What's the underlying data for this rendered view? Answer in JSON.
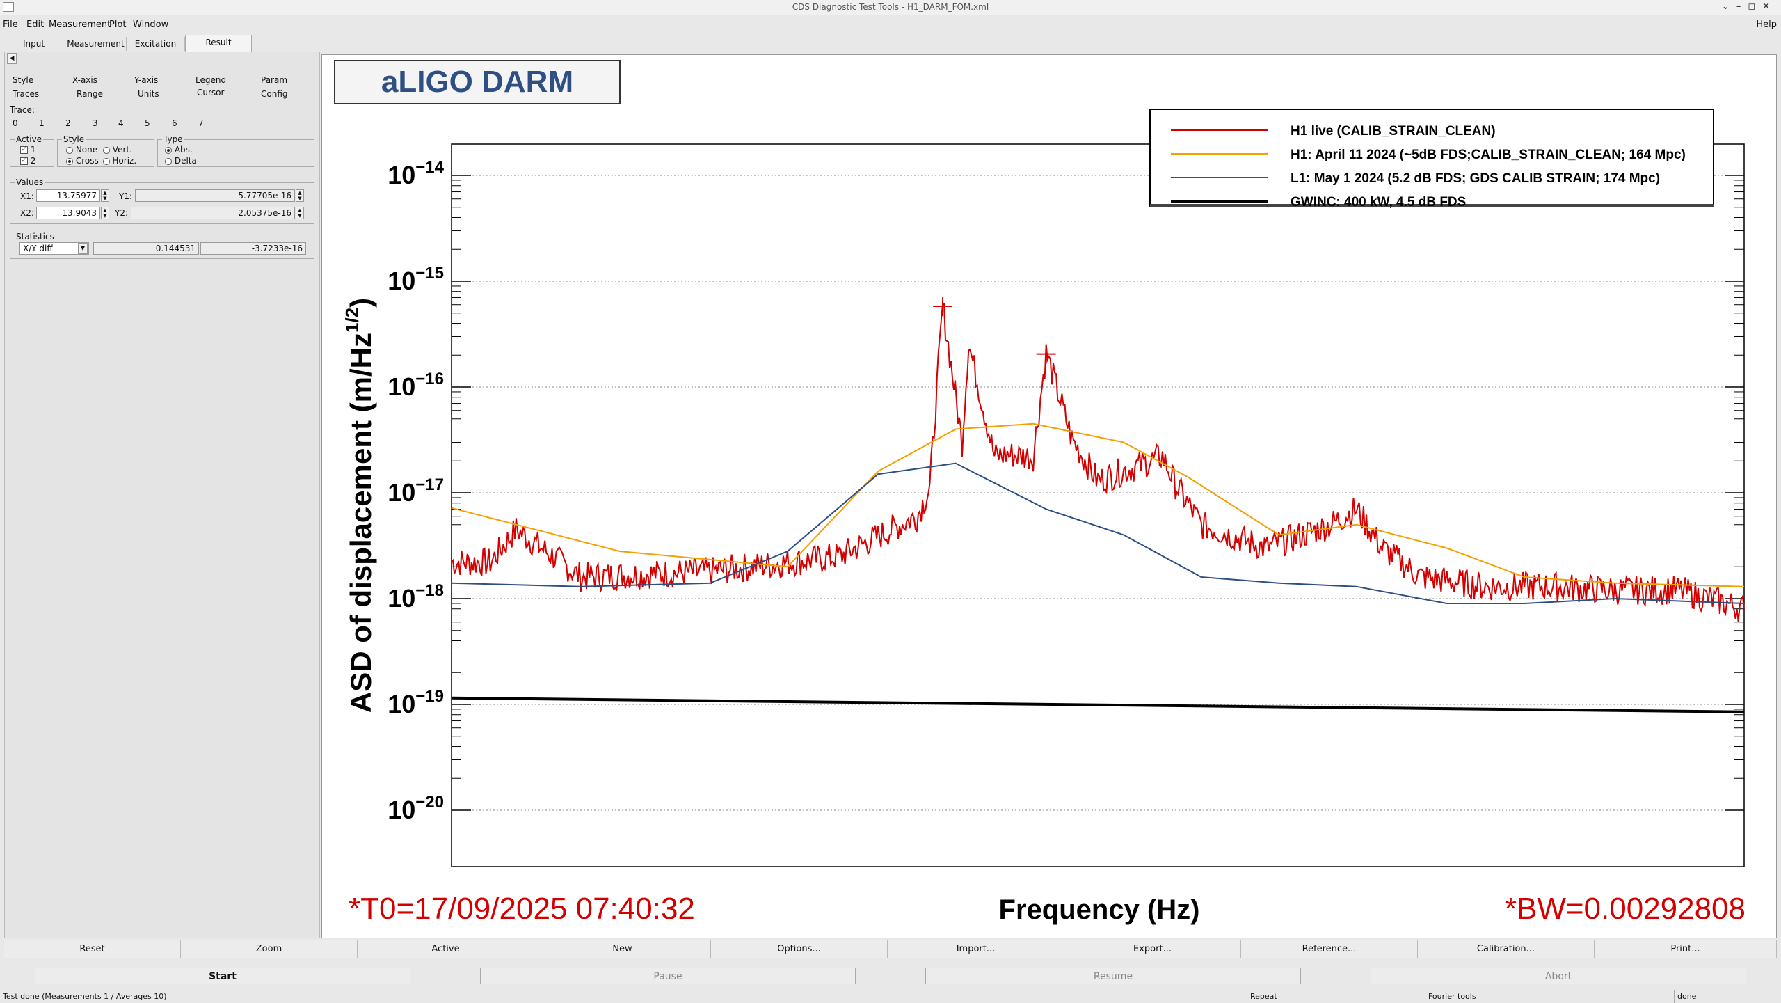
{
  "window": {
    "title": "CDS Diagnostic Test Tools - H1_DARM_FOM.xml"
  },
  "menu": [
    "File",
    "Edit",
    "Measurement",
    "Plot",
    "Window"
  ],
  "menu_help": "Help",
  "tabs": [
    "Input",
    "Measurement",
    "Excitation",
    "Result"
  ],
  "subtabs_row1": [
    "Style",
    "X-axis",
    "Y-axis",
    "Legend",
    "Param"
  ],
  "subtabs_row2": [
    "Traces",
    "Range",
    "Units",
    "Cursor",
    "Config"
  ],
  "trace_label": "Trace:",
  "trace_tabs": [
    "0",
    "1",
    "2",
    "3",
    "4",
    "5",
    "6",
    "7"
  ],
  "active_group": {
    "label": "Active",
    "items": [
      "1",
      "2"
    ],
    "check": "✓"
  },
  "style_group": {
    "label": "Style",
    "items": [
      "None",
      "Vert.",
      "Cross",
      "Horiz."
    ]
  },
  "type_group": {
    "label": "Type",
    "items": [
      "Abs.",
      "Delta"
    ]
  },
  "values_group": {
    "label": "Values",
    "x1_label": "X1:",
    "x1": "13.75977",
    "y1_label": "Y1:",
    "y1": "5.77705e-16",
    "x2_label": "X2:",
    "x2": "13.9043",
    "y2_label": "Y2:",
    "y2": "2.05375e-16"
  },
  "stats_group": {
    "label": "Statistics",
    "select": "X/Y diff",
    "v1": "0.144531",
    "v2": "-3.7233e-16"
  },
  "plot": {
    "title": "aLIGO DARM",
    "xlabel": "Frequency (Hz)",
    "ylabel": "ASD of displacement (m/Hz",
    "ylabel_sup": "1/2",
    "ylabel_end": ")",
    "t0": "*T0=17/09/2025 07:40:32",
    "bw": "*BW=0.00292808",
    "ytick_base": "10",
    "yticks_exp": [
      "−14",
      "−15",
      "−16",
      "−17",
      "−18",
      "−19",
      "−20"
    ]
  },
  "chart_data": {
    "type": "line",
    "yscale": "log",
    "xlabel": "Frequency (Hz)",
    "ylabel": "ASD of displacement (m/Hz^1/2)",
    "grid": true,
    "legend_position": "top-right",
    "series": [
      {
        "name": "H1 live (CALIB_STRAIN_CLEAN)",
        "color": "#d40000",
        "x": [
          0,
          0.03,
          0.05,
          0.1,
          0.2,
          0.3,
          0.36,
          0.37,
          0.38,
          0.395,
          0.4,
          0.42,
          0.43,
          0.45,
          0.46,
          0.48,
          0.5,
          0.52,
          0.55,
          0.56,
          0.58,
          0.63,
          0.68,
          0.7,
          0.72,
          0.75,
          0.8,
          0.85,
          0.9,
          0.95,
          1.0
        ],
        "y": [
          2.2e-18,
          2.2e-18,
          4.5e-18,
          1.6e-18,
          1.8e-18,
          2.5e-18,
          6e-18,
          1.1e-17,
          5.8e-16,
          3e-17,
          2.6e-16,
          2.2e-17,
          2.3e-17,
          2.2e-17,
          2.1e-16,
          3.2e-17,
          1.3e-17,
          1.6e-17,
          2.2e-17,
          1.2e-17,
          5e-18,
          3e-18,
          5e-18,
          7e-18,
          3e-18,
          1.6e-18,
          1.3e-18,
          1.3e-18,
          1.2e-18,
          1.2e-18,
          8e-19
        ]
      },
      {
        "name": "H1: April 11 2024 (~5dB FDS;CALIB_STRAIN_CLEAN; 164 Mpc)",
        "color": "#f5a000",
        "x": [
          0,
          0.13,
          0.26,
          0.33,
          0.39,
          0.45,
          0.52,
          0.57,
          0.64,
          0.7,
          0.77,
          0.83,
          0.9,
          1.0
        ],
        "y": [
          7.2e-18,
          2.8e-18,
          2e-18,
          1.6e-17,
          4e-17,
          4.5e-17,
          3e-17,
          1.4e-17,
          4e-18,
          5e-18,
          3e-18,
          1.6e-18,
          1.4e-18,
          1.3e-18
        ]
      },
      {
        "name": "L1: May 1 2024 (5.2 dB FDS; GDS CALIB STRAIN; 174 Mpc)",
        "color": "#2e4f84",
        "x": [
          0,
          0.1,
          0.2,
          0.26,
          0.33,
          0.39,
          0.46,
          0.52,
          0.58,
          0.64,
          0.7,
          0.77,
          0.83,
          0.9,
          1.0
        ],
        "y": [
          1.4e-18,
          1.3e-18,
          1.4e-18,
          2.8e-18,
          1.5e-17,
          1.9e-17,
          7e-18,
          4e-18,
          1.6e-18,
          1.4e-18,
          1.3e-18,
          9e-19,
          9e-19,
          1e-18,
          9e-19
        ]
      },
      {
        "name": "GWINC: 400 kW, 4.5 dB FDS",
        "color": "#000000",
        "x": [
          0,
          1.0
        ],
        "y": [
          1.15e-19,
          8.5e-20
        ]
      }
    ]
  },
  "buttons_row1": [
    "Reset",
    "Zoom",
    "Active",
    "New",
    "Options...",
    "Import...",
    "Export...",
    "Reference...",
    "Calibration...",
    "Print..."
  ],
  "buttons_row2": [
    "Start",
    "Pause",
    "Resume",
    "Abort"
  ],
  "status": {
    "left": "Test done (Measurements 1 / Averages 10)",
    "repeat": "Repeat",
    "tool": "Fourier tools",
    "state": "done"
  }
}
